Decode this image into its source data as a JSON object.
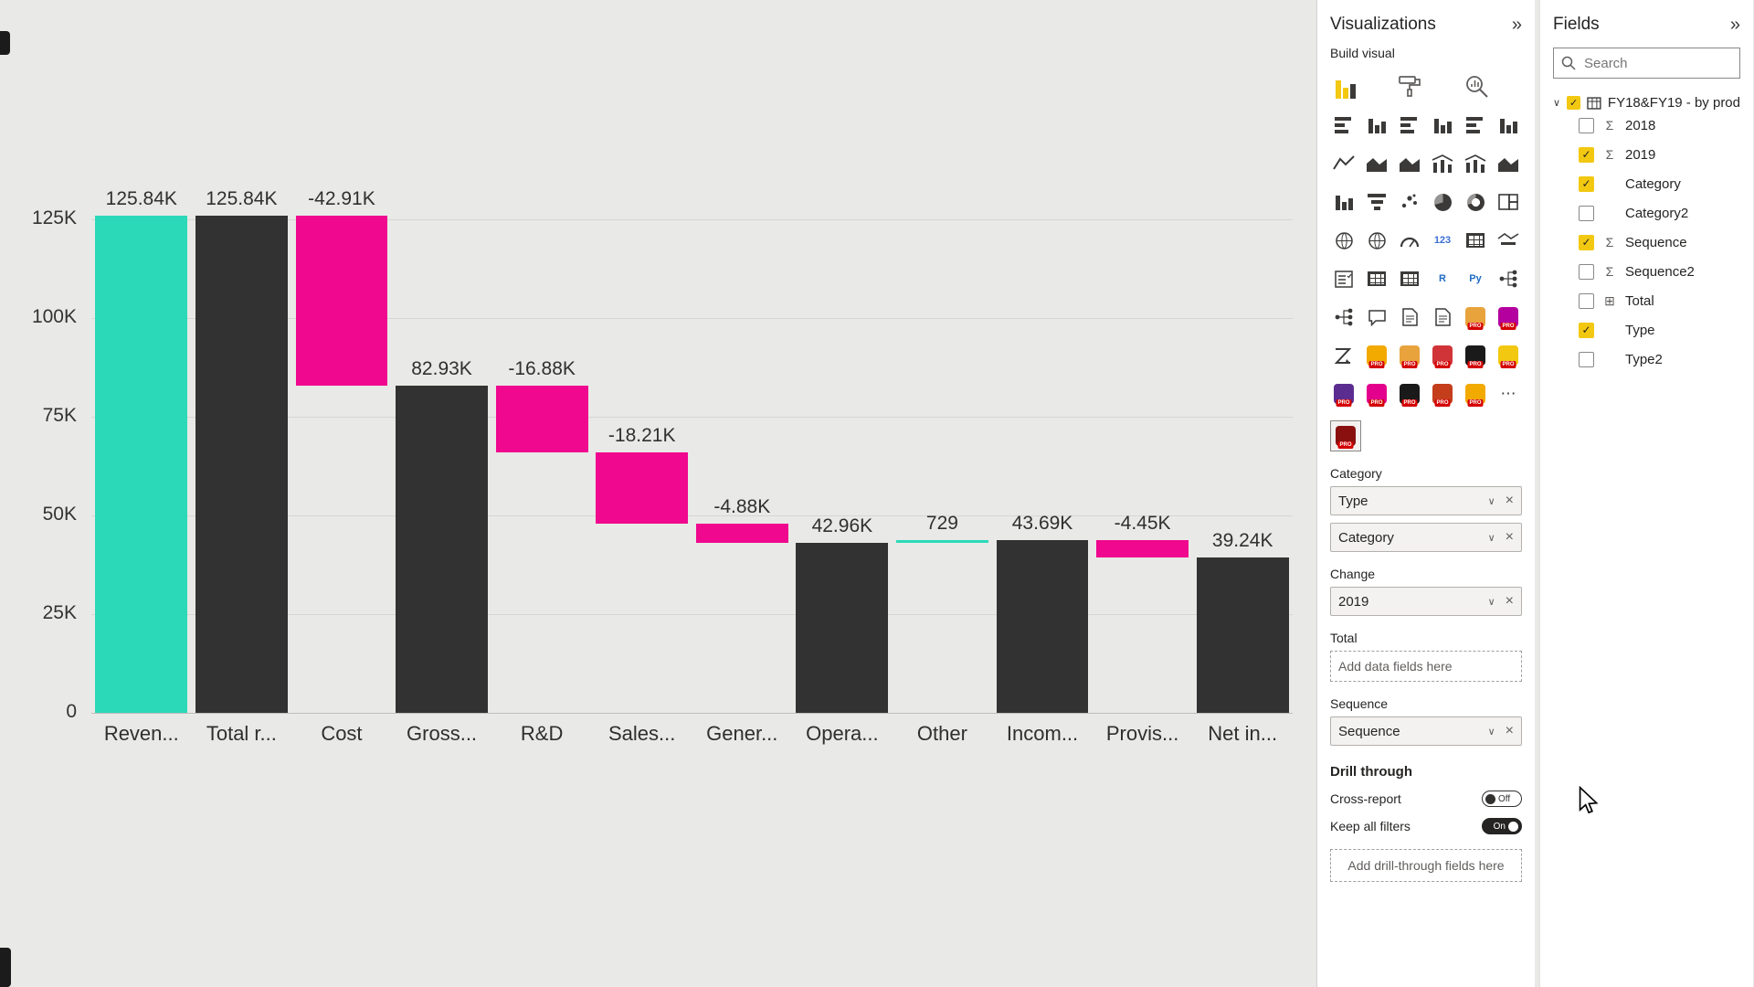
{
  "icons": {
    "chevron_down": "∨",
    "close": "×",
    "check": "✓",
    "sigma": "Σ",
    "grid": "⊞",
    "more": "⋯",
    "collapse": "»"
  },
  "chart_data": {
    "type": "bar",
    "subtype": "waterfall",
    "title": "",
    "xlabel": "",
    "ylabel": "",
    "ylim": [
      0,
      125000
    ],
    "grid": true,
    "legend": "none",
    "yticks": [
      {
        "label": "0",
        "value": 0
      },
      {
        "label": "25K",
        "value": 25
      },
      {
        "label": "50K",
        "value": 50
      },
      {
        "label": "75K",
        "value": 75
      },
      {
        "label": "100K",
        "value": 100
      },
      {
        "label": "125K",
        "value": 125
      }
    ],
    "colors": {
      "increase": "#2bd9b8",
      "decrease": "#f0088e",
      "total": "#323232"
    },
    "bars": [
      {
        "category": "Reven...",
        "label": "125.84K",
        "kind": "increase",
        "start": 0,
        "end": 125.84
      },
      {
        "category": "Total r...",
        "label": "125.84K",
        "kind": "total",
        "start": 0,
        "end": 125.84
      },
      {
        "category": "Cost",
        "label": "-42.91K",
        "kind": "decrease",
        "start": 82.93,
        "end": 125.84
      },
      {
        "category": "Gross...",
        "label": "82.93K",
        "kind": "total",
        "start": 0,
        "end": 82.93
      },
      {
        "category": "R&D",
        "label": "-16.88K",
        "kind": "decrease",
        "start": 66.05,
        "end": 82.93
      },
      {
        "category": "Sales...",
        "label": "-18.21K",
        "kind": "decrease",
        "start": 47.84,
        "end": 66.05
      },
      {
        "category": "Gener...",
        "label": "-4.88K",
        "kind": "decrease",
        "start": 42.96,
        "end": 47.84
      },
      {
        "category": "Opera...",
        "label": "42.96K",
        "kind": "total",
        "start": 0,
        "end": 42.96
      },
      {
        "category": "Other",
        "label": "729",
        "kind": "increase",
        "start": 42.96,
        "end": 43.69
      },
      {
        "category": "Incom...",
        "label": "43.69K",
        "kind": "total",
        "start": 0,
        "end": 43.69
      },
      {
        "category": "Provis...",
        "label": "-4.45K",
        "kind": "decrease",
        "start": 39.24,
        "end": 43.69
      },
      {
        "category": "Net in...",
        "label": "39.24K",
        "kind": "total",
        "start": 0,
        "end": 39.24
      }
    ]
  },
  "visualizations": {
    "title": "Visualizations",
    "section_label": "Build visual",
    "tabs": [
      {
        "name": "build-visual",
        "selected": true
      },
      {
        "name": "format-visual",
        "selected": false
      },
      {
        "name": "analytics",
        "selected": false
      }
    ],
    "icon_grid": [
      {
        "name": "stacked-bar-chart",
        "type": "bars"
      },
      {
        "name": "stacked-column-chart",
        "type": "cols"
      },
      {
        "name": "clustered-bar-chart",
        "type": "bars"
      },
      {
        "name": "clustered-column-chart",
        "type": "cols"
      },
      {
        "name": "100-stacked-bar-chart",
        "type": "bars"
      },
      {
        "name": "100-stacked-column-chart",
        "type": "cols"
      },
      {
        "name": "line-chart",
        "type": "line"
      },
      {
        "name": "area-chart",
        "type": "area"
      },
      {
        "name": "stacked-area-chart",
        "type": "area"
      },
      {
        "name": "line-and-stacked-column-chart",
        "type": "combo"
      },
      {
        "name": "line-and-clustered-column-chart",
        "type": "combo"
      },
      {
        "name": "ribbon-chart",
        "type": "area"
      },
      {
        "name": "waterfall-chart",
        "type": "cols"
      },
      {
        "name": "funnel-chart",
        "type": "funnel"
      },
      {
        "name": "scatter-chart",
        "type": "scatter"
      },
      {
        "name": "pie-chart",
        "type": "pie"
      },
      {
        "name": "donut-chart",
        "type": "donut"
      },
      {
        "name": "treemap",
        "type": "treemap"
      },
      {
        "name": "map",
        "type": "globe"
      },
      {
        "name": "filled-map",
        "type": "globe"
      },
      {
        "name": "gauge",
        "type": "gauge"
      },
      {
        "name": "card",
        "type": "text",
        "text": "123",
        "color": "#3b6fd4"
      },
      {
        "name": "multi-row-card",
        "type": "table"
      },
      {
        "name": "kpi",
        "type": "kpi"
      },
      {
        "name": "slicer",
        "type": "slicer"
      },
      {
        "name": "table",
        "type": "table"
      },
      {
        "name": "matrix",
        "type": "table"
      },
      {
        "name": "r-script-visual",
        "type": "text",
        "text": "R",
        "color": "#1f6cc5"
      },
      {
        "name": "python-visual",
        "type": "text",
        "text": "Py",
        "color": "#1f6cc5"
      },
      {
        "name": "key-influencers",
        "type": "tree"
      },
      {
        "name": "decomposition-tree",
        "type": "tree"
      },
      {
        "name": "q-and-a",
        "type": "speech"
      },
      {
        "name": "smart-narrative",
        "type": "doc"
      },
      {
        "name": "paginated-report",
        "type": "doc"
      },
      {
        "name": "custom-visual-1",
        "type": "app",
        "color": "#e8a33d",
        "pro": true
      },
      {
        "name": "custom-visual-2",
        "type": "app",
        "color": "#b4009e",
        "pro": true
      },
      {
        "name": "arrow-visual",
        "type": "zarrow"
      },
      {
        "name": "custom-visual-3",
        "type": "app",
        "color": "#f2a900",
        "pro": true
      },
      {
        "name": "custom-visual-4",
        "type": "app",
        "color": "#e8a33d",
        "pro": true
      },
      {
        "name": "custom-visual-5",
        "type": "app",
        "color": "#d13438",
        "pro": true
      },
      {
        "name": "custom-visual-6",
        "type": "app",
        "color": "#1a1a1a",
        "pro": true
      },
      {
        "name": "custom-visual-7",
        "type": "app",
        "color": "#f2c811",
        "pro": true
      },
      {
        "name": "custom-visual-8",
        "type": "app",
        "color": "#5c2d91",
        "pro": true
      },
      {
        "name": "custom-visual-9",
        "type": "app",
        "color": "#e3008c",
        "pro": true
      },
      {
        "name": "custom-visual-10",
        "type": "app",
        "color": "#1a1a1a",
        "pro": true
      },
      {
        "name": "custom-visual-11",
        "type": "app",
        "color": "#c43e1c",
        "pro": true
      },
      {
        "name": "custom-visual-12",
        "type": "app",
        "color": "#f2a900",
        "pro": true
      },
      {
        "name": "more-visuals",
        "type": "dots"
      }
    ],
    "selected_visual": {
      "name": "custom-waterfall-visual",
      "type": "app",
      "color": "#8a1010",
      "pro": true
    },
    "wells": [
      {
        "label": "Category",
        "pills": [
          {
            "text": "Type"
          },
          {
            "text": "Category"
          }
        ],
        "placeholder": ""
      },
      {
        "label": "Change",
        "pills": [
          {
            "text": "2019"
          }
        ],
        "placeholder": ""
      },
      {
        "label": "Total",
        "pills": [],
        "placeholder": "Add data fields here"
      },
      {
        "label": "Sequence",
        "pills": [
          {
            "text": "Sequence"
          }
        ],
        "placeholder": ""
      }
    ],
    "drill_through": {
      "label": "Drill through",
      "toggles": [
        {
          "label": "Cross-report",
          "state": "Off",
          "on": false
        },
        {
          "label": "Keep all filters",
          "state": "On",
          "on": true
        }
      ],
      "placeholder": "Add drill-through fields here"
    }
  },
  "fields_panel": {
    "title": "Fields",
    "search_placeholder": "Search",
    "table": {
      "name": "FY18&FY19 - by prod",
      "expanded": true,
      "checked": true
    },
    "items": [
      {
        "name": "2018",
        "checked": false,
        "numeric": true
      },
      {
        "name": "2019",
        "checked": true,
        "numeric": true
      },
      {
        "name": "Category",
        "checked": true,
        "numeric": false
      },
      {
        "name": "Category2",
        "checked": false,
        "numeric": false
      },
      {
        "name": "Sequence",
        "checked": true,
        "numeric": true
      },
      {
        "name": "Sequence2",
        "checked": false,
        "numeric": true
      },
      {
        "name": "Total",
        "checked": false,
        "numeric": false,
        "icon": "table"
      },
      {
        "name": "Type",
        "checked": true,
        "numeric": false
      },
      {
        "name": "Type2",
        "checked": false,
        "numeric": false
      }
    ]
  }
}
